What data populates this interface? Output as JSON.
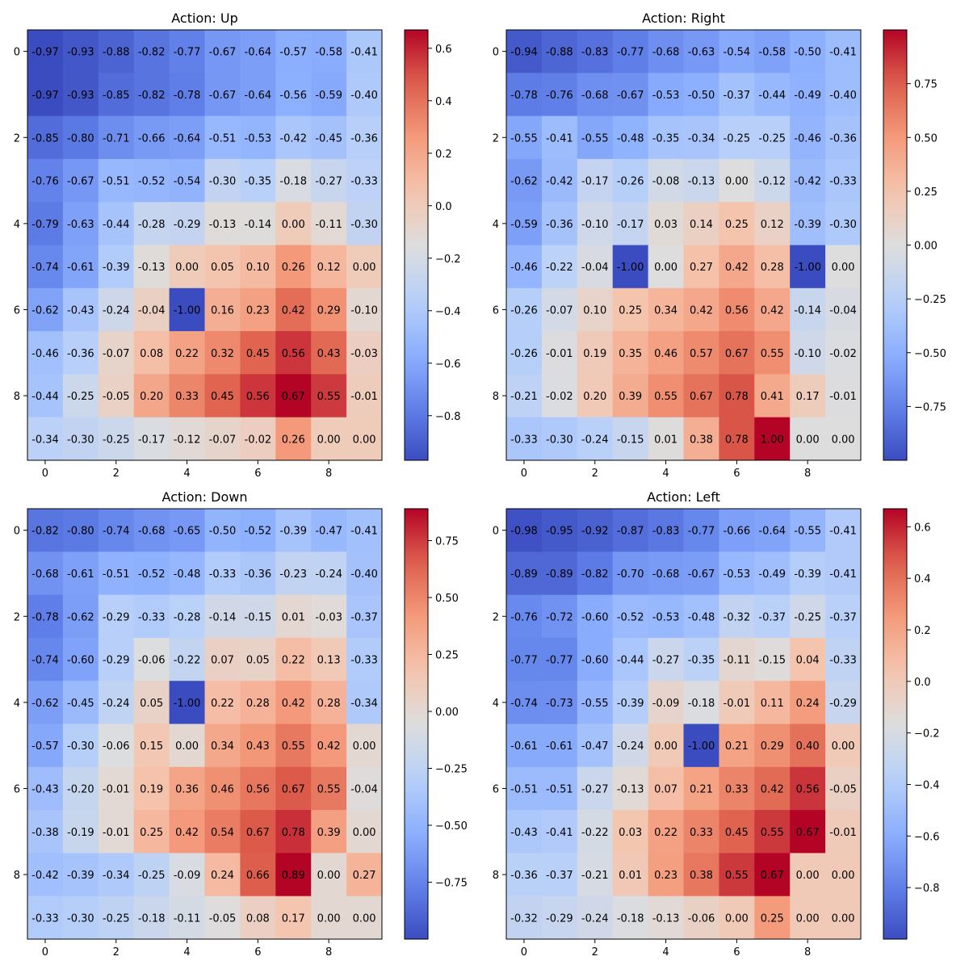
{
  "chart_data": [
    {
      "type": "heatmap",
      "title": "Action: Up",
      "xticks": [
        0,
        2,
        4,
        6,
        8
      ],
      "yticks": [
        0,
        2,
        4,
        6,
        8
      ],
      "colormap": "coolwarm",
      "vmin": -0.97,
      "vmax": 0.67,
      "colorbar_ticks": [
        "0.6",
        "0.4",
        "0.2",
        "0.0",
        "−0.2",
        "−0.4",
        "−0.6",
        "−0.8"
      ],
      "values": [
        [
          -0.97,
          -0.93,
          -0.88,
          -0.82,
          -0.77,
          -0.67,
          -0.64,
          -0.57,
          -0.58,
          -0.41
        ],
        [
          -0.97,
          -0.93,
          -0.85,
          -0.82,
          -0.78,
          -0.67,
          -0.64,
          -0.56,
          -0.59,
          -0.4
        ],
        [
          -0.85,
          -0.8,
          -0.71,
          -0.66,
          -0.64,
          -0.51,
          -0.53,
          -0.42,
          -0.45,
          -0.36
        ],
        [
          -0.76,
          -0.67,
          -0.51,
          -0.52,
          -0.54,
          -0.3,
          -0.35,
          -0.18,
          -0.27,
          -0.33
        ],
        [
          -0.79,
          -0.63,
          -0.44,
          -0.28,
          -0.29,
          -0.13,
          -0.14,
          0.0,
          -0.11,
          -0.3
        ],
        [
          -0.74,
          -0.61,
          -0.39,
          -0.13,
          0.0,
          0.05,
          0.1,
          0.26,
          0.12,
          0.0
        ],
        [
          -0.62,
          -0.43,
          -0.24,
          -0.04,
          -1.0,
          0.16,
          0.23,
          0.42,
          0.29,
          -0.1
        ],
        [
          -0.46,
          -0.36,
          -0.07,
          0.08,
          0.22,
          0.32,
          0.45,
          0.56,
          0.43,
          -0.03
        ],
        [
          -0.44,
          -0.25,
          -0.05,
          0.2,
          0.33,
          0.45,
          0.56,
          0.67,
          0.55,
          -0.01
        ],
        [
          -0.34,
          -0.3,
          -0.25,
          -0.17,
          -0.12,
          -0.07,
          -0.02,
          0.26,
          0.0,
          0.0
        ]
      ]
    },
    {
      "type": "heatmap",
      "title": "Action: Right",
      "xticks": [
        0,
        2,
        4,
        6,
        8
      ],
      "yticks": [
        0,
        2,
        4,
        6,
        8
      ],
      "colormap": "coolwarm",
      "vmin": -1.0,
      "vmax": 1.0,
      "colorbar_ticks": [
        "0.75",
        "0.50",
        "0.25",
        "0.00",
        "−0.25",
        "−0.50",
        "−0.75"
      ],
      "values": [
        [
          -0.94,
          -0.88,
          -0.83,
          -0.77,
          -0.68,
          -0.63,
          -0.54,
          -0.58,
          -0.5,
          -0.41
        ],
        [
          -0.78,
          -0.76,
          -0.68,
          -0.67,
          -0.53,
          -0.5,
          -0.37,
          -0.44,
          -0.49,
          -0.4
        ],
        [
          -0.55,
          -0.41,
          -0.55,
          -0.48,
          -0.35,
          -0.34,
          -0.25,
          -0.25,
          -0.46,
          -0.36
        ],
        [
          -0.62,
          -0.42,
          -0.17,
          -0.26,
          -0.08,
          -0.13,
          0.0,
          -0.12,
          -0.42,
          -0.33
        ],
        [
          -0.59,
          -0.36,
          -0.1,
          -0.17,
          0.03,
          0.14,
          0.25,
          0.12,
          -0.39,
          -0.3
        ],
        [
          -0.46,
          -0.22,
          -0.04,
          -1.0,
          0.0,
          0.27,
          0.42,
          0.28,
          -1.0,
          0.0
        ],
        [
          -0.26,
          -0.07,
          0.1,
          0.25,
          0.34,
          0.42,
          0.56,
          0.42,
          -0.14,
          -0.04
        ],
        [
          -0.26,
          -0.01,
          0.19,
          0.35,
          0.46,
          0.57,
          0.67,
          0.55,
          -0.1,
          -0.02
        ],
        [
          -0.21,
          -0.02,
          0.2,
          0.39,
          0.55,
          0.67,
          0.78,
          0.41,
          0.17,
          -0.01
        ],
        [
          -0.33,
          -0.3,
          -0.24,
          -0.15,
          0.01,
          0.38,
          0.78,
          1.0,
          0.0,
          0.0
        ]
      ]
    },
    {
      "type": "heatmap",
      "title": "Action: Down",
      "xticks": [
        0,
        2,
        4,
        6,
        8
      ],
      "yticks": [
        0,
        2,
        4,
        6,
        8
      ],
      "colormap": "coolwarm",
      "vmin": -1.0,
      "vmax": 0.89,
      "colorbar_ticks": [
        "0.75",
        "0.50",
        "0.25",
        "0.00",
        "−0.25",
        "−0.50",
        "−0.75"
      ],
      "values": [
        [
          -0.82,
          -0.8,
          -0.74,
          -0.68,
          -0.65,
          -0.5,
          -0.52,
          -0.39,
          -0.47,
          -0.41
        ],
        [
          -0.68,
          -0.61,
          -0.51,
          -0.52,
          -0.48,
          -0.33,
          -0.36,
          -0.23,
          -0.24,
          -0.4
        ],
        [
          -0.78,
          -0.62,
          -0.29,
          -0.33,
          -0.28,
          -0.14,
          -0.15,
          0.01,
          -0.03,
          -0.37
        ],
        [
          -0.74,
          -0.6,
          -0.29,
          -0.06,
          -0.22,
          0.07,
          0.05,
          0.22,
          0.13,
          -0.33
        ],
        [
          -0.62,
          -0.45,
          -0.24,
          0.05,
          -1.0,
          0.22,
          0.28,
          0.42,
          0.28,
          -0.34
        ],
        [
          -0.57,
          -0.3,
          -0.06,
          0.15,
          0.0,
          0.34,
          0.43,
          0.55,
          0.42,
          0.0
        ],
        [
          -0.43,
          -0.2,
          -0.01,
          0.19,
          0.36,
          0.46,
          0.56,
          0.67,
          0.55,
          -0.04
        ],
        [
          -0.38,
          -0.19,
          -0.01,
          0.25,
          0.42,
          0.54,
          0.67,
          0.78,
          0.39,
          0.0
        ],
        [
          -0.42,
          -0.39,
          -0.34,
          -0.25,
          -0.09,
          0.24,
          0.66,
          0.89,
          0.0,
          0.27
        ],
        [
          -0.33,
          -0.3,
          -0.25,
          -0.18,
          -0.11,
          -0.05,
          0.08,
          0.17,
          0.0,
          0.0
        ]
      ]
    },
    {
      "type": "heatmap",
      "title": "Action: Left",
      "xticks": [
        0,
        2,
        4,
        6,
        8
      ],
      "yticks": [
        0,
        2,
        4,
        6,
        8
      ],
      "colormap": "coolwarm",
      "vmin": -1.0,
      "vmax": 0.67,
      "colorbar_ticks": [
        "0.6",
        "0.4",
        "0.2",
        "0.0",
        "−0.2",
        "−0.4",
        "−0.6",
        "−0.8"
      ],
      "values": [
        [
          -0.98,
          -0.95,
          -0.92,
          -0.87,
          -0.83,
          -0.77,
          -0.66,
          -0.64,
          -0.55,
          -0.41
        ],
        [
          -0.89,
          -0.89,
          -0.82,
          -0.7,
          -0.68,
          -0.67,
          -0.53,
          -0.49,
          -0.39,
          -0.41
        ],
        [
          -0.76,
          -0.72,
          -0.6,
          -0.52,
          -0.53,
          -0.48,
          -0.32,
          -0.37,
          -0.25,
          -0.37
        ],
        [
          -0.77,
          -0.77,
          -0.6,
          -0.44,
          -0.27,
          -0.35,
          -0.11,
          -0.15,
          0.04,
          -0.33
        ],
        [
          -0.74,
          -0.73,
          -0.55,
          -0.39,
          -0.09,
          -0.18,
          -0.01,
          0.11,
          0.24,
          -0.29
        ],
        [
          -0.61,
          -0.61,
          -0.47,
          -0.24,
          0.0,
          -1.0,
          0.21,
          0.29,
          0.4,
          0.0
        ],
        [
          -0.51,
          -0.51,
          -0.27,
          -0.13,
          0.07,
          0.21,
          0.33,
          0.42,
          0.56,
          -0.05
        ],
        [
          -0.43,
          -0.41,
          -0.22,
          0.03,
          0.22,
          0.33,
          0.45,
          0.55,
          0.67,
          -0.01
        ],
        [
          -0.36,
          -0.37,
          -0.21,
          0.01,
          0.23,
          0.38,
          0.55,
          0.67,
          0.0,
          0.0
        ],
        [
          -0.32,
          -0.29,
          -0.24,
          -0.18,
          -0.13,
          -0.06,
          0.0,
          0.25,
          0.0,
          0.0
        ]
      ]
    }
  ]
}
